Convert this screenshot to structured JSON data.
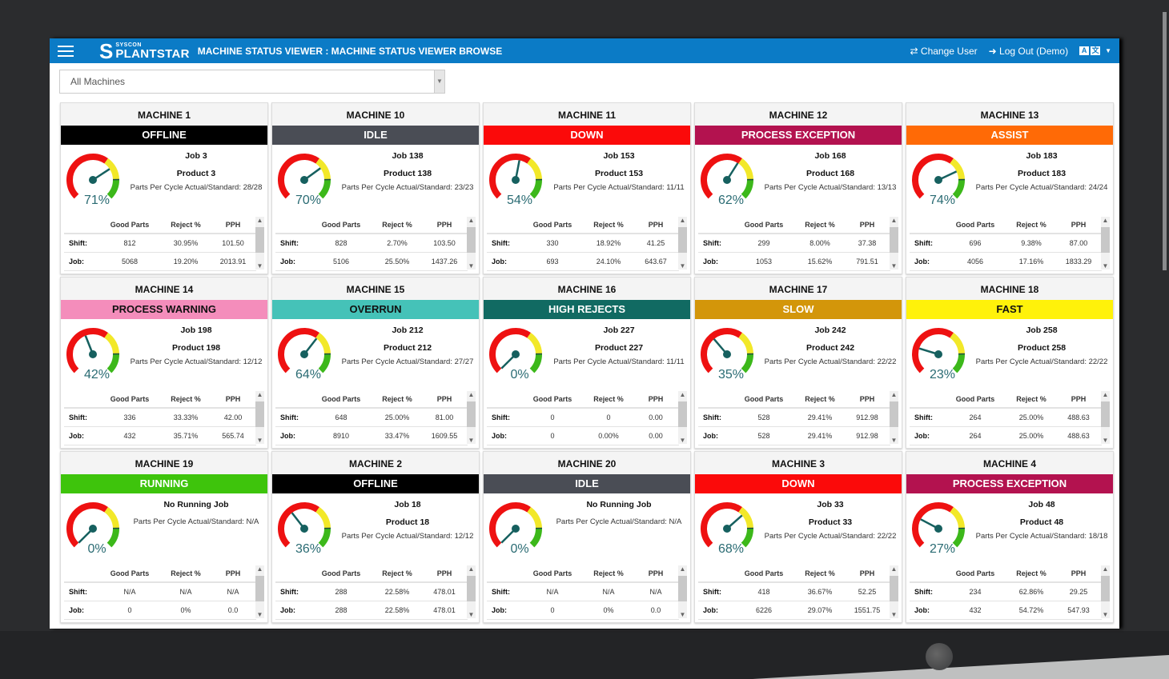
{
  "header": {
    "logo_small": "SYSCON",
    "logo_big": "PLANTSTAR",
    "title": "MACHINE STATUS VIEWER : MACHINE STATUS VIEWER BROWSE",
    "change_user": "Change User",
    "logout": "Log Out (Demo)",
    "lang_a": "A",
    "lang_b": "文"
  },
  "filter": {
    "value": "All Machines"
  },
  "table_headers": {
    "good": "Good Parts",
    "reject": "Reject %",
    "pph": "PPH",
    "shift": "Shift:",
    "job": "Job:"
  },
  "gauge_colors": {
    "red": "#ee1111",
    "yellow": "#f2e829",
    "green": "#3cb81a",
    "needle": "#16605f"
  },
  "cards": [
    {
      "name": "MACHINE 1",
      "status": "OFFLINE",
      "bg": "#000000",
      "fg": "#ffffff",
      "percent": 71,
      "percent_label": "71%",
      "job": "Job 3",
      "product": "Product 3",
      "ppc": "Parts Per Cycle Actual/Standard: 28/28",
      "shift": [
        "812",
        "30.95%",
        "101.50"
      ],
      "jobrow": [
        "5068",
        "19.20%",
        "2013.91"
      ]
    },
    {
      "name": "MACHINE 10",
      "status": "IDLE",
      "bg": "#4a4d55",
      "fg": "#ffffff",
      "percent": 70,
      "percent_label": "70%",
      "job": "Job 138",
      "product": "Product 138",
      "ppc": "Parts Per Cycle Actual/Standard: 23/23",
      "shift": [
        "828",
        "2.70%",
        "103.50"
      ],
      "jobrow": [
        "5106",
        "25.50%",
        "1437.26"
      ]
    },
    {
      "name": "MACHINE 11",
      "status": "DOWN",
      "bg": "#fb0a0a",
      "fg": "#ffffff",
      "percent": 54,
      "percent_label": "54%",
      "job": "Job 153",
      "product": "Product 153",
      "ppc": "Parts Per Cycle Actual/Standard: 11/11",
      "shift": [
        "330",
        "18.92%",
        "41.25"
      ],
      "jobrow": [
        "693",
        "24.10%",
        "643.67"
      ]
    },
    {
      "name": "MACHINE 12",
      "status": "PROCESS EXCEPTION",
      "bg": "#b3124f",
      "fg": "#ffffff",
      "percent": 62,
      "percent_label": "62%",
      "job": "Job 168",
      "product": "Product 168",
      "ppc": "Parts Per Cycle Actual/Standard: 13/13",
      "shift": [
        "299",
        "8.00%",
        "37.38"
      ],
      "jobrow": [
        "1053",
        "15.62%",
        "791.51"
      ]
    },
    {
      "name": "MACHINE 13",
      "status": "ASSIST",
      "bg": "#ff6a06",
      "fg": "#ffffff",
      "percent": 74,
      "percent_label": "74%",
      "job": "Job 183",
      "product": "Product 183",
      "ppc": "Parts Per Cycle Actual/Standard: 24/24",
      "shift": [
        "696",
        "9.38%",
        "87.00"
      ],
      "jobrow": [
        "4056",
        "17.16%",
        "1833.29"
      ]
    },
    {
      "name": "MACHINE 14",
      "status": "PROCESS WARNING",
      "bg": "#f48dbb",
      "fg": "#111111",
      "percent": 42,
      "percent_label": "42%",
      "job": "Job 198",
      "product": "Product 198",
      "ppc": "Parts Per Cycle Actual/Standard: 12/12",
      "shift": [
        "336",
        "33.33%",
        "42.00"
      ],
      "jobrow": [
        "432",
        "35.71%",
        "565.74"
      ]
    },
    {
      "name": "MACHINE 15",
      "status": "OVERRUN",
      "bg": "#45c2b8",
      "fg": "#111111",
      "percent": 64,
      "percent_label": "64%",
      "job": "Job 212",
      "product": "Product 212",
      "ppc": "Parts Per Cycle Actual/Standard: 27/27",
      "shift": [
        "648",
        "25.00%",
        "81.00"
      ],
      "jobrow": [
        "8910",
        "33.47%",
        "1609.55"
      ]
    },
    {
      "name": "MACHINE 16",
      "status": "HIGH REJECTS",
      "bg": "#116a62",
      "fg": "#ffffff",
      "percent": 0,
      "percent_label": "0%",
      "job": "Job 227",
      "product": "Product 227",
      "ppc": "Parts Per Cycle Actual/Standard: 11/11",
      "shift": [
        "0",
        "0",
        "0.00"
      ],
      "jobrow": [
        "0",
        "0.00%",
        "0.00"
      ]
    },
    {
      "name": "MACHINE 17",
      "status": "SLOW",
      "bg": "#d3960a",
      "fg": "#ffffff",
      "percent": 35,
      "percent_label": "35%",
      "job": "Job 242",
      "product": "Product 242",
      "ppc": "Parts Per Cycle Actual/Standard: 22/22",
      "shift": [
        "528",
        "29.41%",
        "912.98"
      ],
      "jobrow": [
        "528",
        "29.41%",
        "912.98"
      ]
    },
    {
      "name": "MACHINE 18",
      "status": "FAST",
      "bg": "#fff20a",
      "fg": "#111111",
      "percent": 23,
      "percent_label": "23%",
      "job": "Job 258",
      "product": "Product 258",
      "ppc": "Parts Per Cycle Actual/Standard: 22/22",
      "shift": [
        "264",
        "25.00%",
        "488.63"
      ],
      "jobrow": [
        "264",
        "25.00%",
        "488.63"
      ]
    },
    {
      "name": "MACHINE 19",
      "status": "RUNNING",
      "bg": "#3ec40c",
      "fg": "#ffffff",
      "percent": 0,
      "percent_label": "0%",
      "job": "No Running Job",
      "product": null,
      "ppc": "Parts Per Cycle Actual/Standard: N/A",
      "shift": [
        "N/A",
        "N/A",
        "N/A"
      ],
      "jobrow": [
        "0",
        "0%",
        "0.0"
      ]
    },
    {
      "name": "MACHINE 2",
      "status": "OFFLINE",
      "bg": "#000000",
      "fg": "#ffffff",
      "percent": 36,
      "percent_label": "36%",
      "job": "Job 18",
      "product": "Product 18",
      "ppc": "Parts Per Cycle Actual/Standard: 12/12",
      "shift": [
        "288",
        "22.58%",
        "478.01"
      ],
      "jobrow": [
        "288",
        "22.58%",
        "478.01"
      ]
    },
    {
      "name": "MACHINE 20",
      "status": "IDLE",
      "bg": "#4a4d55",
      "fg": "#ffffff",
      "percent": 0,
      "percent_label": "0%",
      "job": "No Running Job",
      "product": null,
      "ppc": "Parts Per Cycle Actual/Standard: N/A",
      "shift": [
        "N/A",
        "N/A",
        "N/A"
      ],
      "jobrow": [
        "0",
        "0%",
        "0.0"
      ]
    },
    {
      "name": "MACHINE 3",
      "status": "DOWN",
      "bg": "#fb0a0a",
      "fg": "#ffffff",
      "percent": 68,
      "percent_label": "68%",
      "job": "Job 33",
      "product": "Product 33",
      "ppc": "Parts Per Cycle Actual/Standard: 22/22",
      "shift": [
        "418",
        "36.67%",
        "52.25"
      ],
      "jobrow": [
        "6226",
        "29.07%",
        "1551.75"
      ]
    },
    {
      "name": "MACHINE 4",
      "status": "PROCESS EXCEPTION",
      "bg": "#b3124f",
      "fg": "#ffffff",
      "percent": 27,
      "percent_label": "27%",
      "job": "Job 48",
      "product": "Product 48",
      "ppc": "Parts Per Cycle Actual/Standard: 18/18",
      "shift": [
        "234",
        "62.86%",
        "29.25"
      ],
      "jobrow": [
        "432",
        "54.72%",
        "547.93"
      ]
    }
  ]
}
